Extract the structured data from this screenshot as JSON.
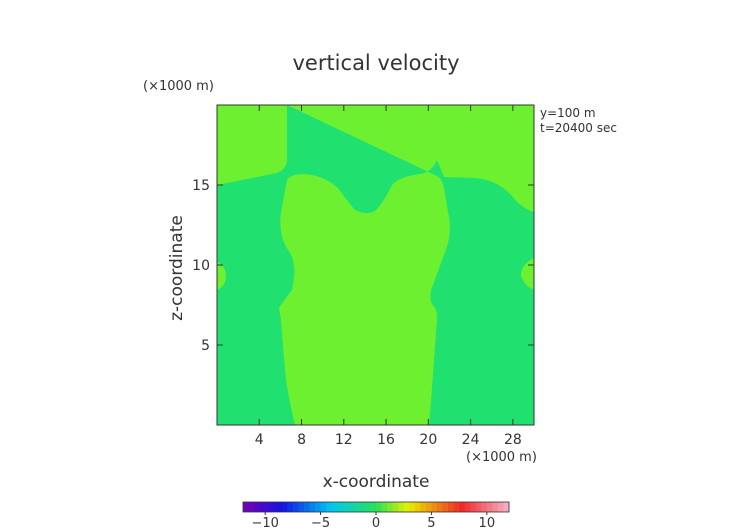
{
  "chart_data": {
    "type": "heatmap",
    "title": "vertical velocity",
    "xlabel": "x-coordinate",
    "ylabel": "z-coordinate",
    "x_unit_label": "(×1000 m)",
    "y_unit_label": "(×1000 m)",
    "annotations": [
      "y=100 m",
      "t=20400 sec"
    ],
    "xlim": [
      0,
      30
    ],
    "ylim": [
      0,
      20
    ],
    "x_ticks": [
      4,
      8,
      12,
      16,
      20,
      24,
      28
    ],
    "x_tick_labels": [
      "4",
      "8",
      "12",
      "16",
      "20",
      "24",
      "28"
    ],
    "y_ticks": [
      5,
      10,
      15
    ],
    "y_tick_labels": [
      "5",
      "10",
      "15"
    ],
    "colorbar": {
      "range": [
        -12,
        12
      ],
      "ticks": [
        -10,
        -5,
        0,
        5,
        10
      ],
      "tick_labels": [
        "−10",
        "−5",
        "0",
        "5",
        "10"
      ]
    },
    "regions": [
      {
        "name": "background",
        "value": -0.3,
        "color": "#20e070"
      },
      {
        "name": "updraft-left-top",
        "value": 0.3,
        "color": "#6cf030"
      },
      {
        "name": "updraft-center",
        "value": 0.3,
        "color": "#6cf030"
      },
      {
        "name": "updraft-right-top",
        "value": 0.3,
        "color": "#6cf030"
      },
      {
        "name": "updraft-left-edge",
        "value": 0.3,
        "color": "#6cf030"
      },
      {
        "name": "updraft-right-edge",
        "value": 0.3,
        "color": "#6cf030"
      }
    ]
  }
}
